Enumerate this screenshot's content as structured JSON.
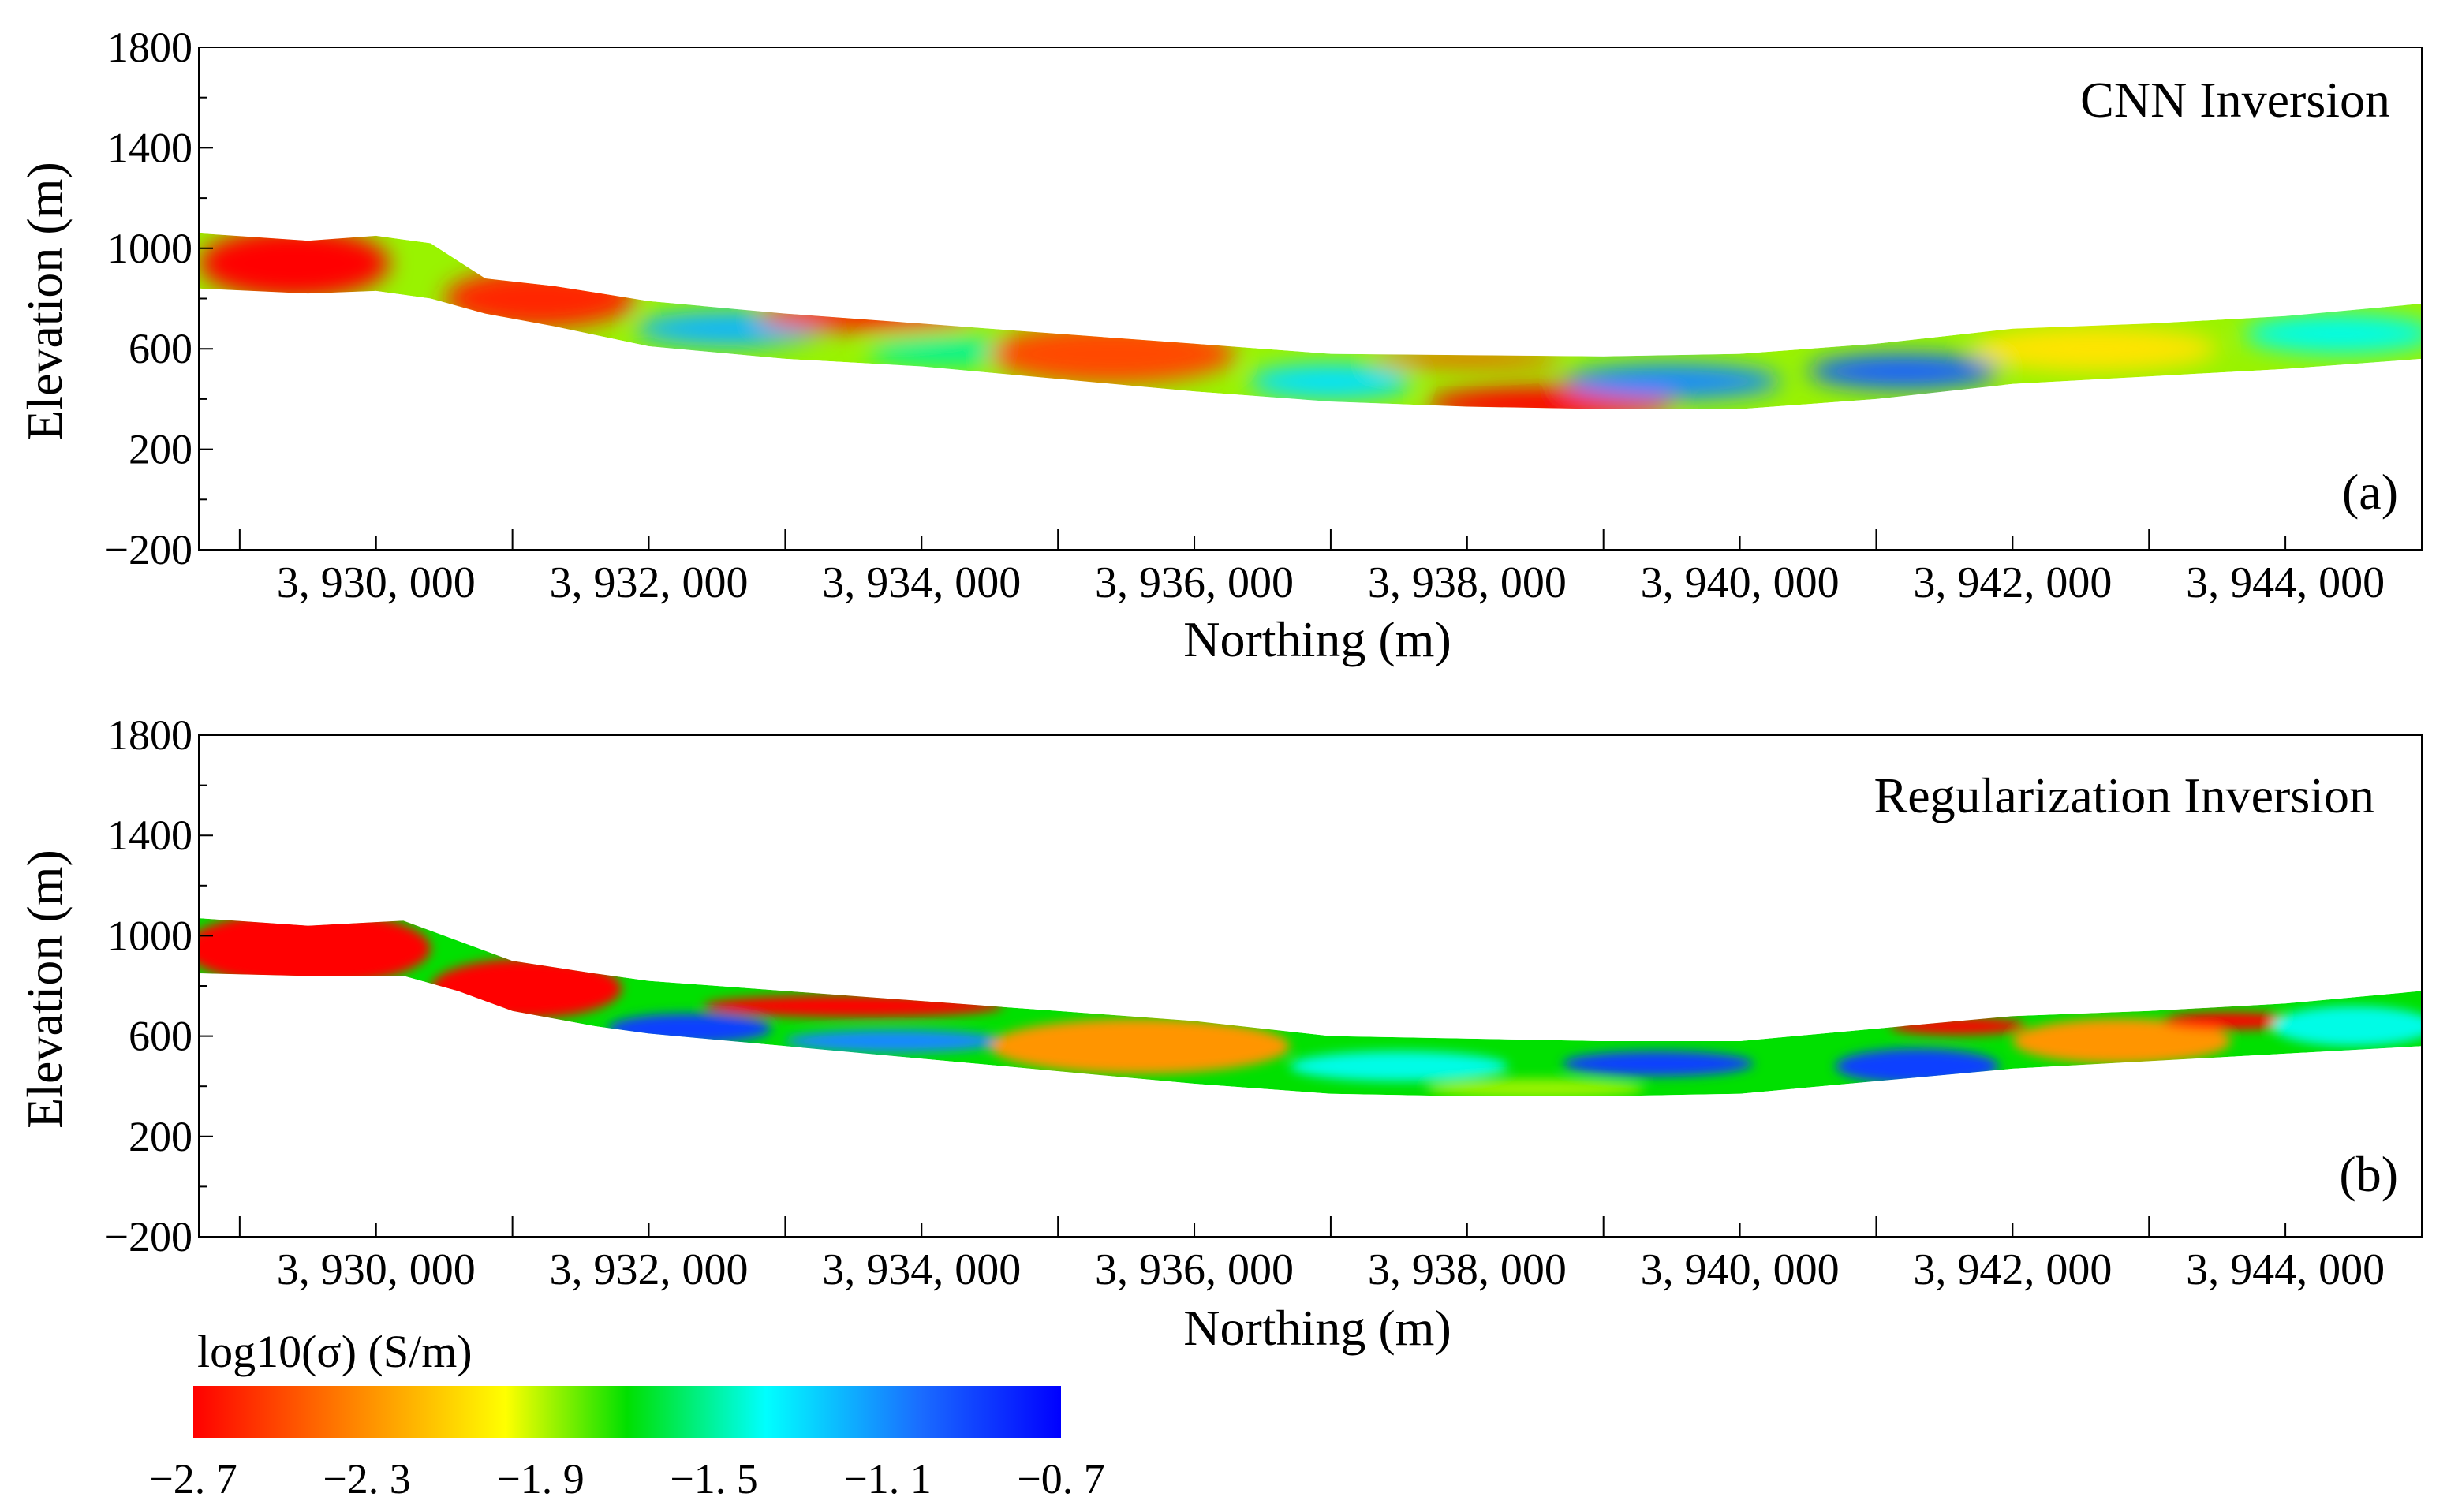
{
  "chart_data": [
    {
      "type": "heatmap",
      "panel": "(a)",
      "title": "CNN Inversion",
      "xlabel": "Northing (m)",
      "ylabel": "Elevation (m)",
      "xlim": [
        3928700,
        3945000
      ],
      "ylim": [
        -200,
        1800
      ],
      "xticks": [
        3930000,
        3932000,
        3934000,
        3936000,
        3938000,
        3940000,
        3942000,
        3944000
      ],
      "xtick_labels": [
        "3, 930, 000",
        "3, 932, 000",
        "3, 934, 000",
        "3, 936, 000",
        "3, 938, 000",
        "3, 940, 000",
        "3, 942, 000",
        "3, 944, 000"
      ],
      "yticks": [
        -200,
        200,
        600,
        1000,
        1400,
        1800
      ],
      "ytick_labels": [
        "−200",
        "200",
        "600",
        "1000",
        "1400",
        "1800"
      ],
      "section_top": [
        [
          3928700,
          1060
        ],
        [
          3929500,
          1030
        ],
        [
          3930000,
          1050
        ],
        [
          3930400,
          1020
        ],
        [
          3930800,
          880
        ],
        [
          3931300,
          850
        ],
        [
          3932000,
          790
        ],
        [
          3933000,
          740
        ],
        [
          3934000,
          700
        ],
        [
          3935000,
          660
        ],
        [
          3936000,
          620
        ],
        [
          3937000,
          580
        ],
        [
          3938000,
          575
        ],
        [
          3939000,
          570
        ],
        [
          3940000,
          580
        ],
        [
          3941000,
          620
        ],
        [
          3942000,
          680
        ],
        [
          3943000,
          700
        ],
        [
          3944000,
          730
        ],
        [
          3945000,
          780
        ]
      ],
      "section_bottom": [
        [
          3928700,
          840
        ],
        [
          3929500,
          820
        ],
        [
          3930000,
          830
        ],
        [
          3930400,
          800
        ],
        [
          3930800,
          740
        ],
        [
          3931300,
          690
        ],
        [
          3932000,
          610
        ],
        [
          3933000,
          560
        ],
        [
          3934000,
          530
        ],
        [
          3935000,
          480
        ],
        [
          3936000,
          430
        ],
        [
          3937000,
          390
        ],
        [
          3938000,
          370
        ],
        [
          3939000,
          360
        ],
        [
          3940000,
          360
        ],
        [
          3941000,
          400
        ],
        [
          3942000,
          460
        ],
        [
          3943000,
          490
        ],
        [
          3944000,
          520
        ],
        [
          3945000,
          560
        ]
      ],
      "anomalies": [
        {
          "x": 3929400,
          "y": 940,
          "rx": 700,
          "ry": 140,
          "value": -2.7
        },
        {
          "x": 3931200,
          "y": 800,
          "rx": 700,
          "ry": 120,
          "value": -2.6
        },
        {
          "x": 3932600,
          "y": 680,
          "rx": 700,
          "ry": 70,
          "value": -1.2
        },
        {
          "x": 3933600,
          "y": 730,
          "rx": 800,
          "ry": 60,
          "value": -2.6
        },
        {
          "x": 3934200,
          "y": 590,
          "rx": 600,
          "ry": 60,
          "value": -1.5
        },
        {
          "x": 3935400,
          "y": 580,
          "rx": 900,
          "ry": 120,
          "value": -2.5
        },
        {
          "x": 3937000,
          "y": 470,
          "rx": 600,
          "ry": 70,
          "value": -1.3
        },
        {
          "x": 3938000,
          "y": 560,
          "rx": 700,
          "ry": 30,
          "value": -2.5
        },
        {
          "x": 3938600,
          "y": 380,
          "rx": 900,
          "ry": 70,
          "value": -2.7
        },
        {
          "x": 3939500,
          "y": 470,
          "rx": 800,
          "ry": 70,
          "value": -1.1
        },
        {
          "x": 3941200,
          "y": 510,
          "rx": 700,
          "ry": 70,
          "value": -1.0
        },
        {
          "x": 3942600,
          "y": 600,
          "rx": 900,
          "ry": 90,
          "value": -2.1
        },
        {
          "x": 3944400,
          "y": 660,
          "rx": 700,
          "ry": 80,
          "value": -1.4
        }
      ]
    },
    {
      "type": "heatmap",
      "panel": "(b)",
      "title": "Regularization Inversion",
      "xlabel": "Northing (m)",
      "ylabel": "Elevation (m)",
      "xlim": [
        3928700,
        3945000
      ],
      "ylim": [
        -200,
        1800
      ],
      "xticks": [
        3930000,
        3932000,
        3934000,
        3936000,
        3938000,
        3940000,
        3942000,
        3944000
      ],
      "xtick_labels": [
        "3, 930, 000",
        "3, 932, 000",
        "3, 934, 000",
        "3, 936, 000",
        "3, 938, 000",
        "3, 940, 000",
        "3, 942, 000",
        "3, 944, 000"
      ],
      "yticks": [
        -200,
        200,
        600,
        1000,
        1400,
        1800
      ],
      "ytick_labels": [
        "−200",
        "200",
        "600",
        "1000",
        "1400",
        "1800"
      ],
      "section_top": [
        [
          3928700,
          1070
        ],
        [
          3929500,
          1040
        ],
        [
          3930200,
          1060
        ],
        [
          3930600,
          980
        ],
        [
          3931000,
          900
        ],
        [
          3931600,
          850
        ],
        [
          3932000,
          820
        ],
        [
          3933000,
          780
        ],
        [
          3934000,
          740
        ],
        [
          3935000,
          700
        ],
        [
          3936000,
          660
        ],
        [
          3937000,
          600
        ],
        [
          3938000,
          590
        ],
        [
          3939000,
          580
        ],
        [
          3940000,
          580
        ],
        [
          3941000,
          630
        ],
        [
          3942000,
          680
        ],
        [
          3943000,
          700
        ],
        [
          3944000,
          730
        ],
        [
          3945000,
          780
        ]
      ],
      "section_bottom": [
        [
          3928700,
          850
        ],
        [
          3929500,
          840
        ],
        [
          3930200,
          840
        ],
        [
          3930600,
          780
        ],
        [
          3931000,
          700
        ],
        [
          3931600,
          640
        ],
        [
          3932000,
          610
        ],
        [
          3933000,
          560
        ],
        [
          3934000,
          510
        ],
        [
          3935000,
          460
        ],
        [
          3936000,
          410
        ],
        [
          3937000,
          370
        ],
        [
          3938000,
          360
        ],
        [
          3939000,
          360
        ],
        [
          3940000,
          370
        ],
        [
          3941000,
          420
        ],
        [
          3942000,
          470
        ],
        [
          3943000,
          500
        ],
        [
          3944000,
          530
        ],
        [
          3945000,
          560
        ]
      ],
      "anomalies": [
        {
          "x": 3929500,
          "y": 950,
          "rx": 900,
          "ry": 150,
          "value": -2.7
        },
        {
          "x": 3931100,
          "y": 790,
          "rx": 700,
          "ry": 120,
          "value": -2.7
        },
        {
          "x": 3932300,
          "y": 630,
          "rx": 600,
          "ry": 60,
          "value": -0.9
        },
        {
          "x": 3933500,
          "y": 720,
          "rx": 1100,
          "ry": 45,
          "value": -2.7
        },
        {
          "x": 3933800,
          "y": 580,
          "rx": 800,
          "ry": 45,
          "value": -1.1
        },
        {
          "x": 3935600,
          "y": 560,
          "rx": 1100,
          "ry": 110,
          "value": -2.3
        },
        {
          "x": 3937500,
          "y": 480,
          "rx": 800,
          "ry": 60,
          "value": -1.4
        },
        {
          "x": 3938500,
          "y": 390,
          "rx": 800,
          "ry": 40,
          "value": -1.9
        },
        {
          "x": 3939400,
          "y": 490,
          "rx": 700,
          "ry": 50,
          "value": -0.9
        },
        {
          "x": 3941300,
          "y": 480,
          "rx": 600,
          "ry": 70,
          "value": -0.9
        },
        {
          "x": 3941600,
          "y": 640,
          "rx": 500,
          "ry": 35,
          "value": -2.7
        },
        {
          "x": 3942800,
          "y": 580,
          "rx": 800,
          "ry": 90,
          "value": -2.3
        },
        {
          "x": 3943600,
          "y": 660,
          "rx": 500,
          "ry": 35,
          "value": -2.7
        },
        {
          "x": 3944500,
          "y": 640,
          "rx": 600,
          "ry": 80,
          "value": -1.4
        }
      ]
    }
  ],
  "colorbar": {
    "label": "log10(σ) (S/m)",
    "min": -2.7,
    "max": -0.7,
    "ticks": [
      -2.7,
      -2.3,
      -1.9,
      -1.5,
      -1.1,
      -0.7
    ],
    "tick_labels": [
      "−2. 7",
      "−2. 3",
      "−1. 9",
      "−1. 5",
      "−1. 1",
      "−0. 7"
    ],
    "stops": [
      "#ff0000",
      "#ff7a00",
      "#ffff00",
      "#00e000",
      "#00ffff",
      "#1a6bff",
      "#0000ff"
    ]
  }
}
